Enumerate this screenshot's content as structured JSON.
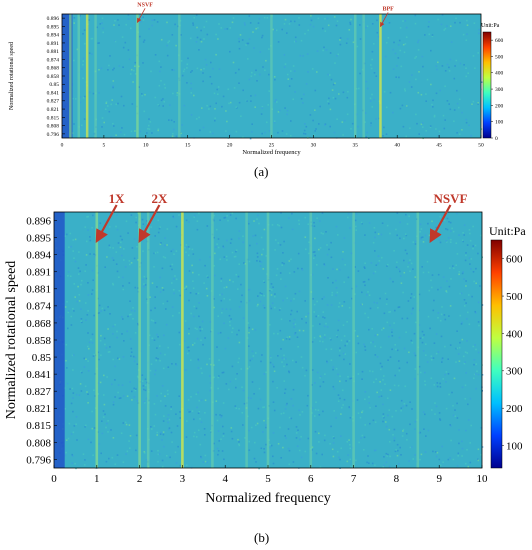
{
  "figure_labels": [
    "(a)",
    "(b)"
  ],
  "chart_data": [
    {
      "type": "heatmap",
      "panel": "(a)",
      "xlabel": "Normalized frequency",
      "ylabel": "Normalized rotational speed",
      "xlim": [
        0,
        50
      ],
      "x_ticks": [
        "0",
        "5",
        "10",
        "15",
        "20",
        "25",
        "30",
        "35",
        "40",
        "45",
        "50"
      ],
      "y_ticks": [
        "0.896",
        "0.895",
        "0.894",
        "0.891",
        "0.881",
        "0.874",
        "0.868",
        "0.858",
        "0.85",
        "0.841",
        "0.827",
        "0.821",
        "0.815",
        "0.808",
        "0.796"
      ],
      "colorbar": {
        "label": "Unit:Pa",
        "min": 0,
        "max": 650,
        "ticks": [
          "0",
          "100",
          "200",
          "300",
          "400",
          "500",
          "600"
        ],
        "colors": [
          "#00008f",
          "#0040ff",
          "#00c0ff",
          "#40ffbf",
          "#c0ff40",
          "#ffbf00",
          "#ff4000",
          "#800000"
        ]
      },
      "annotations": [
        {
          "text": "NSVF",
          "x": 9.0,
          "y_tick_index": 0.5
        },
        {
          "text": "BPF",
          "x": 38.0,
          "y_tick_index": 1.0
        }
      ],
      "features": [
        {
          "x": 1.0,
          "weight": 0.5
        },
        {
          "x": 2.0,
          "weight": 0.4
        },
        {
          "x": 3.0,
          "weight": 0.7
        },
        {
          "x": 4.0,
          "weight": 0.3
        },
        {
          "x": 9.0,
          "weight": 0.5
        },
        {
          "x": 14.0,
          "weight": 0.3
        },
        {
          "x": 25.0,
          "weight": 0.3
        },
        {
          "x": 35.0,
          "weight": 0.4
        },
        {
          "x": 36.0,
          "weight": 0.3
        },
        {
          "x": 38.0,
          "weight": 0.8
        }
      ]
    },
    {
      "type": "heatmap",
      "panel": "(b)",
      "xlabel": "Normalized frequency",
      "ylabel": "Normalized rotational speed",
      "xlim": [
        0,
        10
      ],
      "x_ticks": [
        "0",
        "1",
        "2",
        "3",
        "4",
        "5",
        "6",
        "7",
        "8",
        "9",
        "10"
      ],
      "y_ticks": [
        "0.896",
        "0.895",
        "0.894",
        "0.891",
        "0.881",
        "0.874",
        "0.868",
        "0.858",
        "0.85",
        "0.841",
        "0.827",
        "0.821",
        "0.815",
        "0.808",
        "0.796"
      ],
      "colorbar": {
        "label": "Unit:Pa",
        "min": 40,
        "max": 650,
        "ticks": [
          "100",
          "200",
          "300",
          "400",
          "500",
          "600"
        ],
        "colors": [
          "#00008f",
          "#0040ff",
          "#00c0ff",
          "#40ffbf",
          "#c0ff40",
          "#ffbf00",
          "#ff4000",
          "#800000"
        ]
      },
      "annotations": [
        {
          "text": "1X",
          "x": 1.0,
          "y_tick_index": 1.2
        },
        {
          "text": "2X",
          "x": 2.0,
          "y_tick_index": 1.2
        },
        {
          "text": "NSVF",
          "x": 8.8,
          "y_tick_index": 1.2
        }
      ],
      "features": [
        {
          "x": 1.0,
          "weight": 0.6
        },
        {
          "x": 2.0,
          "weight": 0.5
        },
        {
          "x": 2.2,
          "weight": 0.4
        },
        {
          "x": 3.0,
          "weight": 0.8
        },
        {
          "x": 3.7,
          "weight": 0.4
        },
        {
          "x": 4.5,
          "weight": 0.3
        },
        {
          "x": 5.0,
          "weight": 0.4
        },
        {
          "x": 6.0,
          "weight": 0.3
        },
        {
          "x": 7.0,
          "weight": 0.4
        },
        {
          "x": 8.5,
          "weight": 0.4
        }
      ]
    }
  ]
}
